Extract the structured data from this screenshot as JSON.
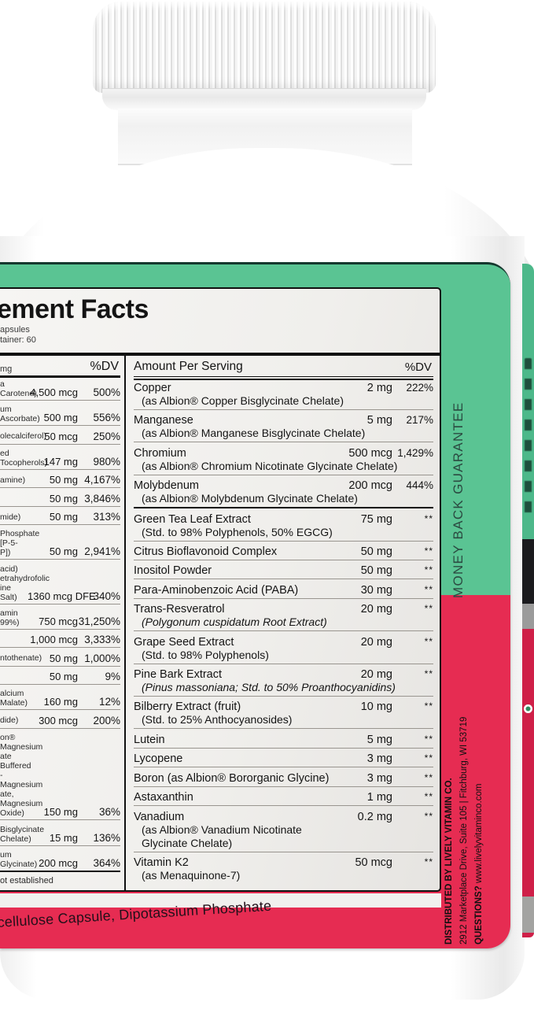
{
  "colors": {
    "label_green": "#5ac493",
    "label_pink": "#e62c52",
    "edge_pink": "#cf1f48",
    "panel_bg": "#f2f1ee",
    "ink": "#141414"
  },
  "panel": {
    "title_fragment": "lement Facts",
    "serving_line1": "apsules",
    "serving_line2": "tainer: 60",
    "footnote_fragment": "ot established"
  },
  "left_column": {
    "header_fragment": "mg",
    "dv_header": "%DV",
    "rows": [
      {
        "label_lines": [
          "a Carotene)"
        ],
        "amount": "4,500 mcg",
        "dv": "500%"
      },
      {
        "label_lines": [
          "um Ascorbate)"
        ],
        "amount": "500 mg",
        "dv": "556%"
      },
      {
        "label_lines": [
          "olecalciferol)"
        ],
        "amount": "50 mcg",
        "dv": "250%"
      },
      {
        "label_lines": [
          "ed Tocopherols)"
        ],
        "amount": "147 mg",
        "dv": "980%"
      },
      {
        "label_lines": [
          "amine)"
        ],
        "amount": "50 mg",
        "dv": "4,167%"
      },
      {
        "label_lines": [],
        "amount": "50 mg",
        "dv": "3,846%"
      },
      {
        "label_lines": [
          "mide)"
        ],
        "amount": "50 mg",
        "dv": "313%"
      },
      {
        "label_lines": [
          "Phosphate [P-5-P])"
        ],
        "amount": "50 mg",
        "dv": "2,941%"
      },
      {
        "label_lines": [
          "acid)",
          "etrahydrofolic",
          "ine Salt)"
        ],
        "amount": "1360 mcg DFE",
        "dv": "340%"
      },
      {
        "label_lines": [
          "amin 99%)"
        ],
        "amount": "750 mcg",
        "dv": "31,250%"
      },
      {
        "label_lines": [],
        "amount": "1,000 mcg",
        "dv": "3,333%"
      },
      {
        "label_lines": [
          "ntothenate)"
        ],
        "amount": "50 mg",
        "dv": "1,000%"
      },
      {
        "label_lines": [],
        "amount": "50 mg",
        "dv": "9%"
      },
      {
        "label_lines": [
          "alcium Malate)"
        ],
        "amount": "160 mg",
        "dv": "12%"
      },
      {
        "label_lines": [
          "dide)"
        ],
        "amount": "300 mcg",
        "dv": "200%"
      },
      {
        "label_lines": [
          "on® Magnesium",
          "ate Buffered - Magnesium",
          "ate, Magnesium Oxide)"
        ],
        "amount": "150 mg",
        "dv": "36%"
      },
      {
        "label_lines": [
          "Bisglycinate Chelate)"
        ],
        "amount": "15 mg",
        "dv": "136%"
      },
      {
        "label_lines": [
          "um Glycinate)"
        ],
        "amount": "200 mcg",
        "dv": "364%"
      }
    ]
  },
  "right_column": {
    "header": "Amount Per Serving",
    "dv_header": "%DV",
    "rows": [
      {
        "name": "Copper",
        "amount": "2 mg",
        "dv": "222%",
        "sub": [
          {
            "t": "(as Albion® Copper Bisglycinate Chelate)"
          }
        ]
      },
      {
        "name": "Manganese",
        "amount": "5 mg",
        "dv": "217%",
        "sub": [
          {
            "t": "(as Albion® Manganese Bisglycinate Chelate)"
          }
        ]
      },
      {
        "name": "Chromium",
        "amount": "500 mcg",
        "dv": "1,429%",
        "sub": [
          {
            "t": "(as Albion® Chromium Nicotinate Glycinate Chelate)"
          }
        ]
      },
      {
        "name": "Molybdenum",
        "amount": "200 mcg",
        "dv": "444%",
        "sub": [
          {
            "t": "(as Albion® Molybdenum Glycinate Chelate)"
          }
        ],
        "thick_after": true
      },
      {
        "name": "Green Tea Leaf Extract",
        "amount": "75 mg",
        "dv": "**",
        "sub": [
          {
            "t": "(Std. to 98% Polyphenols, 50% EGCG)"
          }
        ]
      },
      {
        "name": "Citrus Bioflavonoid Complex",
        "amount": "50 mg",
        "dv": "**"
      },
      {
        "name": "Inositol Powder",
        "amount": "50 mg",
        "dv": "**"
      },
      {
        "name": "Para-Aminobenzoic Acid (PABA)",
        "amount": "30 mg",
        "dv": "**"
      },
      {
        "name": "Trans-Resveratrol",
        "amount": "20 mg",
        "dv": "**",
        "sub": [
          {
            "t": "(Polygonum cuspidatum Root Extract)",
            "i": true
          }
        ]
      },
      {
        "name": "Grape Seed Extract",
        "amount": "20 mg",
        "dv": "**",
        "sub": [
          {
            "t": "(Std. to 98% Polyphenols)"
          }
        ]
      },
      {
        "name": "Pine Bark Extract",
        "amount": "20 mg",
        "dv": "**",
        "sub": [
          {
            "t": "(Pinus massoniana; Std. to 50% Proanthocyanidins)",
            "i": true
          }
        ]
      },
      {
        "name": "Bilberry Extract (fruit)",
        "amount": "10 mg",
        "dv": "**",
        "sub": [
          {
            "t": "(Std. to 25% Anthocyanosides)"
          }
        ]
      },
      {
        "name": "Lutein",
        "amount": "5 mg",
        "dv": "**"
      },
      {
        "name": "Lycopene",
        "amount": "3 mg",
        "dv": "**"
      },
      {
        "name": "Boron (as Albion® Bororganic Glycine)",
        "amount": "3 mg",
        "dv": "**"
      },
      {
        "name": "Astaxanthin",
        "amount": "1 mg",
        "dv": "**"
      },
      {
        "name": "Vanadium",
        "amount": "0.2 mg",
        "dv": "**",
        "sub": [
          {
            "t": "(as Albion® Vanadium Nicotinate"
          },
          {
            "t": "Glycinate Chelate)"
          }
        ]
      },
      {
        "name": "Vitamin K2",
        "amount": "50 mcg",
        "dv": "**",
        "sub": [
          {
            "t": "(as Menaquinone-7)"
          }
        ]
      }
    ]
  },
  "side_panels": {
    "guarantee": "MONEY BACK GUARANTEE",
    "distributor_line1": "DISTRIBUTED BY LIVELY VITAMIN CO.",
    "distributor_line2": "2912 Marketplace Drive, Suite 105 | Fitchburg, WI 53719",
    "questions_label": "QUESTIONS?",
    "questions_value": " www.livelyvitaminco.com"
  },
  "bottom_band": {
    "other_ingredients_fragment": "cellulose Capsule, Dipotassium Phosphate"
  }
}
